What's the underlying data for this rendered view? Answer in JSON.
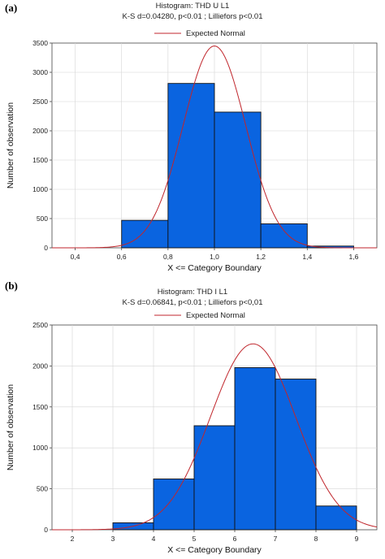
{
  "chart_data": [
    {
      "panel_label": "(a)",
      "type": "bar",
      "title": "Histogram: THD U L1",
      "subtitle": "K-S d=0.04280, p<0.01 ; Lilliefors p<0.01",
      "xlabel": "X <= Category Boundary",
      "ylabel": "Number of observation",
      "xlim": [
        0.3,
        1.7
      ],
      "ylim": [
        0,
        3500
      ],
      "xticks": [
        "0,4",
        "0,6",
        "0,8",
        "1,0",
        "1,2",
        "1,4",
        "1,6"
      ],
      "xtick_values": [
        0.4,
        0.6,
        0.8,
        1.0,
        1.2,
        1.4,
        1.6
      ],
      "yticks": [
        0,
        500,
        1000,
        1500,
        2000,
        2500,
        3000,
        3500
      ],
      "bins": [
        {
          "from": 0.6,
          "to": 0.8,
          "value": 470
        },
        {
          "from": 0.8,
          "to": 1.0,
          "value": 2810
        },
        {
          "from": 1.0,
          "to": 1.2,
          "value": 2320
        },
        {
          "from": 1.2,
          "to": 1.4,
          "value": 410
        },
        {
          "from": 1.4,
          "to": 1.6,
          "value": 30
        }
      ],
      "normal_curve": {
        "name": "Expected Normal",
        "mean": 1.0,
        "sd": 0.135,
        "peak": 3450
      },
      "legend": "top-center",
      "grid": true,
      "bar_color": "#0a64e0",
      "curve_color": "#c0262c"
    },
    {
      "panel_label": "(b)",
      "type": "bar",
      "title": "Histogram: THD I L1",
      "subtitle": "K-S d=0.06841, p<0.01 ; Lilliefors p<0,01",
      "xlabel": "X <= Category Boundary",
      "ylabel": "Number of observation",
      "xlim": [
        1.5,
        9.5
      ],
      "ylim": [
        0,
        2500
      ],
      "xticks": [
        "2",
        "3",
        "4",
        "5",
        "6",
        "7",
        "8",
        "9"
      ],
      "xtick_values": [
        2,
        3,
        4,
        5,
        6,
        7,
        8,
        9
      ],
      "yticks": [
        0,
        500,
        1000,
        1500,
        2000,
        2500
      ],
      "bins": [
        {
          "from": 3,
          "to": 4,
          "value": 85
        },
        {
          "from": 4,
          "to": 5,
          "value": 620
        },
        {
          "from": 5,
          "to": 6,
          "value": 1270
        },
        {
          "from": 6,
          "to": 7,
          "value": 1980
        },
        {
          "from": 7,
          "to": 8,
          "value": 1840
        },
        {
          "from": 8,
          "to": 9,
          "value": 290
        }
      ],
      "normal_curve": {
        "name": "Expected Normal",
        "mean": 6.45,
        "sd": 1.05,
        "peak": 2270
      },
      "legend": "top-center",
      "grid": true,
      "bar_color": "#0a64e0",
      "curve_color": "#c0262c"
    }
  ]
}
